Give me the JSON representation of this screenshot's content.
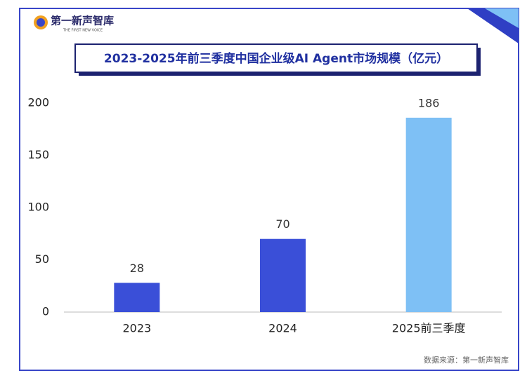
{
  "logo": {
    "name": "第一新声智库",
    "tagline": "THE FIRST NEW VOICE"
  },
  "chart_data": {
    "type": "bar",
    "title": "2023-2025年前三季度中国企业级AI Agent市场规模（亿元）",
    "categories": [
      "2023",
      "2024",
      "2025前三季度"
    ],
    "values": [
      28,
      70,
      186
    ],
    "colors": [
      "#3a4fd8",
      "#3a4fd8",
      "#7ec0f5"
    ],
    "ylim": [
      0,
      200
    ],
    "yticks": [
      0,
      50,
      100,
      150,
      200
    ],
    "grid": false,
    "source": "数据来源：第一新声智库"
  }
}
